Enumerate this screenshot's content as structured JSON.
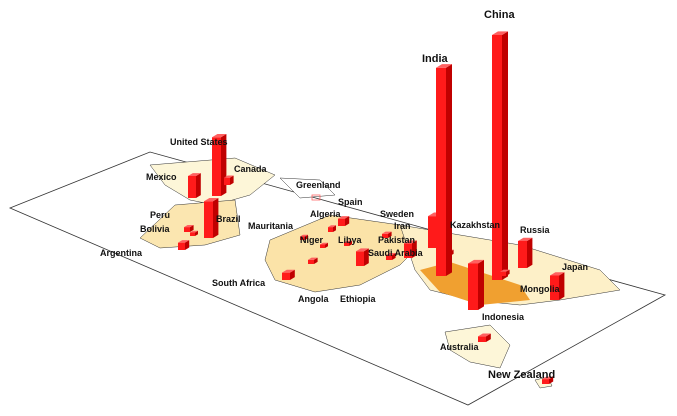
{
  "map": {
    "plane_color": "#ffffff",
    "land_color": "#fdf6d8",
    "dense_color": "#f0a030",
    "bar_color": "#ff1a1a",
    "bars": [
      {
        "country": "United States",
        "relative_value": 0.24
      },
      {
        "country": "Canada",
        "relative_value": 0.03
      },
      {
        "country": "Mexico",
        "relative_value": 0.09
      },
      {
        "country": "Brazil",
        "relative_value": 0.15
      },
      {
        "country": "Peru",
        "relative_value": 0.02
      },
      {
        "country": "Bolivia",
        "relative_value": 0.01
      },
      {
        "country": "Argentina",
        "relative_value": 0.03
      },
      {
        "country": "Greenland",
        "relative_value": 0.0
      },
      {
        "country": "Mauritania",
        "relative_value": 0.01
      },
      {
        "country": "Algeria",
        "relative_value": 0.02
      },
      {
        "country": "Spain",
        "relative_value": 0.03
      },
      {
        "country": "Niger",
        "relative_value": 0.01
      },
      {
        "country": "Libya",
        "relative_value": 0.01
      },
      {
        "country": "Sweden",
        "relative_value": 0.01
      },
      {
        "country": "South Africa",
        "relative_value": 0.03
      },
      {
        "country": "Angola",
        "relative_value": 0.01
      },
      {
        "country": "Ethiopia",
        "relative_value": 0.06
      },
      {
        "country": "Saudi Arabia",
        "relative_value": 0.02
      },
      {
        "country": "Iran",
        "relative_value": 0.06
      },
      {
        "country": "Pakistan",
        "relative_value": 0.13
      },
      {
        "country": "Kazakhstan",
        "relative_value": 0.01
      },
      {
        "country": "India",
        "relative_value": 0.85
      },
      {
        "country": "China",
        "relative_value": 1.0
      },
      {
        "country": "Indonesia",
        "relative_value": 0.19
      },
      {
        "country": "Mongolia",
        "relative_value": 0.01
      },
      {
        "country": "Russia",
        "relative_value": 0.11
      },
      {
        "country": "Japan",
        "relative_value": 0.1
      },
      {
        "country": "Australia",
        "relative_value": 0.02
      },
      {
        "country": "New Zealand",
        "relative_value": 0.01
      }
    ]
  }
}
